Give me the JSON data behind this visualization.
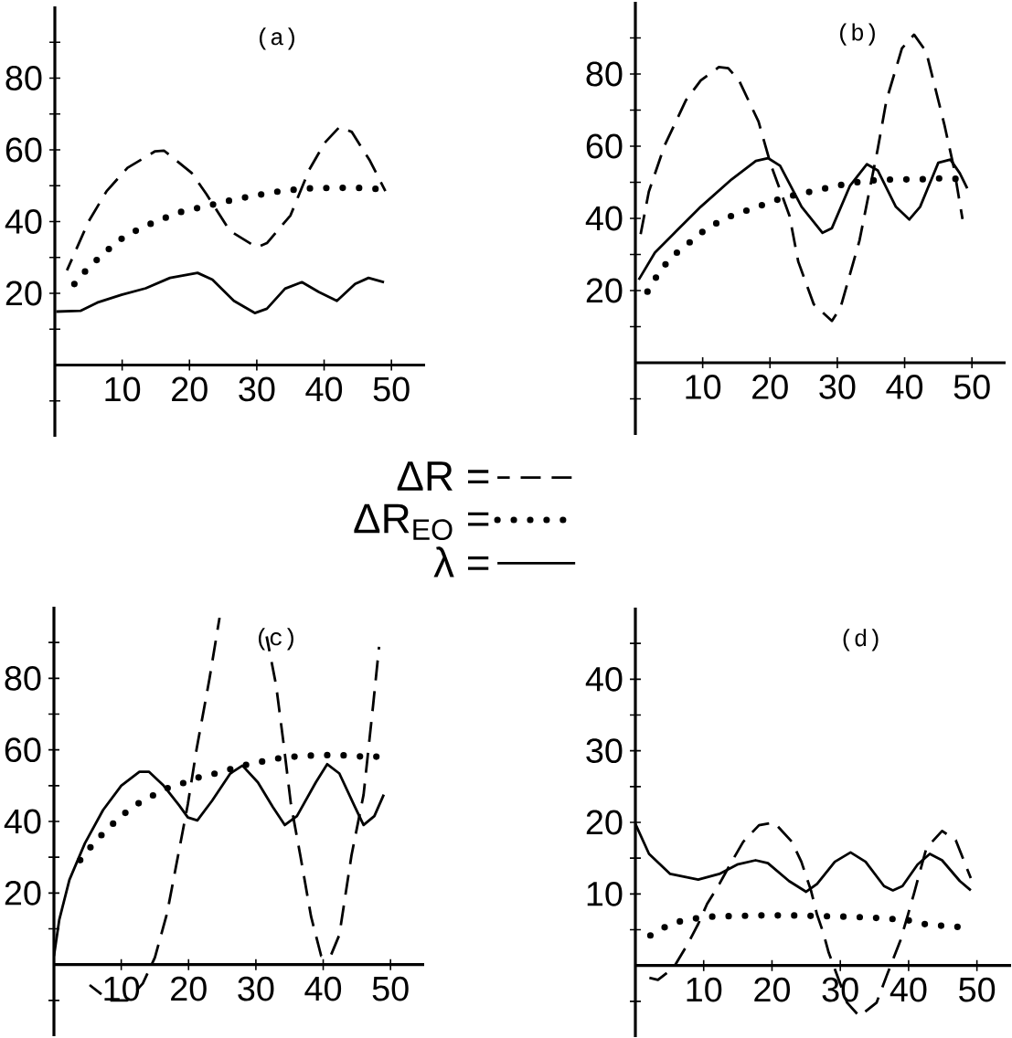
{
  "chart_data": [
    {
      "type": "line",
      "title": "(a)",
      "xlim": [
        0,
        55
      ],
      "ylim": [
        -20,
        100
      ],
      "xticks": [
        10,
        20,
        30,
        40,
        50
      ],
      "yticks": [
        {
          "value": -10,
          "label": null
        },
        {
          "value": 10,
          "label": null
        },
        20,
        {
          "value": 30,
          "label": null
        },
        40,
        {
          "value": 50,
          "label": null
        },
        60,
        {
          "value": 70,
          "label": null
        },
        80,
        {
          "value": 90,
          "label": null
        }
      ],
      "legend": "bottom right",
      "series": [
        {
          "name": "ΔR =",
          "color": "#000000",
          "line_style": "dashed",
          "x": [
            1.8,
            5,
            7.7,
            10.8,
            14.9,
            16.2,
            20.3,
            22.5,
            26,
            30,
            31.5,
            35,
            37.8,
            40.1,
            42.3,
            44.1,
            46.8,
            49.1
          ],
          "values": [
            26.4,
            40,
            48.5,
            55,
            59.6,
            59.8,
            53.6,
            47.7,
            37.4,
            32.8,
            34,
            41.7,
            54.5,
            62,
            66.4,
            65,
            57,
            48.5
          ]
        },
        {
          "name": "ΔR$_{EO}$ =",
          "color": "#000000",
          "line_style": "dotted",
          "x": [
            2.9,
            5,
            7,
            9,
            11,
            13.1,
            15.1,
            17.1,
            18.9,
            23,
            25,
            29,
            32.9,
            36.9,
            41,
            45,
            48.9
          ],
          "values": [
            22.6,
            27.2,
            30.6,
            34,
            36.6,
            38.3,
            40.2,
            41.5,
            42.8,
            44.5,
            45.5,
            47,
            48.3,
            49.2,
            49.4,
            49.4,
            49
          ]
        },
        {
          "name": "λ =",
          "color": "#000000",
          "line_style": "solid",
          "x": [
            0.2,
            3.8,
            6.3,
            9.9,
            13.5,
            17.1,
            21.2,
            23.4,
            26.6,
            29.7,
            31.5,
            34.2,
            36.7,
            39.2,
            41.9,
            44.6,
            46.6,
            48.9
          ],
          "values": [
            14.9,
            15.1,
            17.4,
            19.6,
            21.4,
            24.3,
            25.7,
            23.8,
            17.9,
            14.5,
            15.7,
            21.3,
            23.1,
            20.4,
            17.9,
            22.6,
            24.3,
            23.1
          ]
        }
      ]
    },
    {
      "type": "line",
      "title": "(b)",
      "xlim": [
        0,
        55
      ],
      "ylim": [
        -20,
        100
      ],
      "xticks": [
        10,
        20,
        30,
        40,
        50
      ],
      "yticks": [
        {
          "value": -10,
          "label": null
        },
        {
          "value": 10,
          "label": null
        },
        20,
        {
          "value": 30,
          "label": null
        },
        40,
        {
          "value": 50,
          "label": null
        },
        60,
        {
          "value": 70,
          "label": null
        },
        80,
        {
          "value": 90,
          "label": null
        }
      ],
      "series": [
        {
          "color": "#000000",
          "line_style": "dashed",
          "x": [
            0.7,
            2,
            4.3,
            7.5,
            9.7,
            12.4,
            13.8,
            15.4,
            18.3,
            20.1,
            22.9,
            24.2,
            26.5,
            29.2,
            30.5,
            33.3,
            36,
            37.3,
            39.6,
            41.4,
            43.2,
            45.9,
            47.3,
            48.6
          ],
          "values": [
            34.8,
            47.4,
            60,
            72.7,
            78.2,
            81.9,
            81.6,
            78.2,
            66.8,
            55,
            40.7,
            28,
            16.2,
            11.6,
            15.4,
            33.9,
            59.2,
            72.7,
            87.1,
            90.9,
            86.2,
            66,
            54.2,
            39.8
          ]
        },
        {
          "color": "#000000",
          "line_style": "dotted",
          "x": [
            1.8,
            3.8,
            5.9,
            7.9,
            10,
            12,
            14,
            18.1,
            21.9,
            26,
            30.1,
            34.2,
            38.2,
            42.3,
            46.4,
            48.4
          ],
          "values": [
            19.7,
            25.9,
            30.1,
            33.1,
            36.3,
            38.6,
            40.5,
            43.2,
            45.7,
            47.4,
            49.1,
            50.4,
            50.8,
            50.8,
            51.2,
            50.8
          ]
        },
        {
          "color": "#000000",
          "line_style": "solid",
          "x": [
            0.5,
            2.9,
            6.1,
            9.7,
            14.3,
            17.9,
            19.7,
            21.5,
            24.7,
            27.8,
            29.2,
            31.9,
            34.4,
            36,
            38.7,
            40.7,
            42.3,
            45,
            46.8,
            48.2,
            49.3
          ],
          "values": [
            23,
            30.5,
            36.5,
            43.2,
            50.8,
            55.9,
            56.7,
            54.6,
            43.2,
            36,
            37.3,
            49.1,
            55,
            53.3,
            43.2,
            39.7,
            43.2,
            55.4,
            56.3,
            52.5,
            48.3
          ]
        }
      ]
    },
    {
      "type": "line",
      "title": "(c)",
      "xlim": [
        0,
        55
      ],
      "ylim": [
        -20,
        100
      ],
      "xticks": [
        10,
        20,
        30,
        40,
        50
      ],
      "yticks": [
        {
          "value": -10,
          "label": null
        },
        {
          "value": 10,
          "label": null
        },
        20,
        {
          "value": 30,
          "label": null
        },
        40,
        {
          "value": 50,
          "label": null
        },
        60,
        {
          "value": 70,
          "label": null
        },
        80,
        {
          "value": 90,
          "label": null
        }
      ],
      "series": [
        {
          "color": "#000000",
          "line_style": "dashed",
          "x": [
            5.3,
            8.2,
            10.9,
            13.2,
            15,
            16.8,
            18.1,
            19.9,
            21.2,
            23.1,
            24.6,
            27,
            31.6,
            33,
            34.1,
            35.2,
            36.6,
            38.2,
            39.7,
            41.1,
            42.4,
            44.2,
            46,
            47.4,
            48.3
          ],
          "values": [
            -5.7,
            -10,
            -10,
            -5.3,
            2,
            14.3,
            27.1,
            44.9,
            60.3,
            79.8,
            96.9,
            null,
            91.7,
            78.1,
            62,
            44.9,
            30.5,
            13.4,
            2.4,
            2.4,
            8.3,
            30.5,
            47.5,
            72.2,
            88.8
          ]
        },
        {
          "color": "#000000",
          "line_style": "dotted",
          "x": [
            3.9,
            5.9,
            8,
            10,
            12,
            14.1,
            16.1,
            18,
            20,
            21.9,
            24,
            26,
            28,
            30,
            34.1,
            37.9,
            42,
            46,
            48.1
          ],
          "values": [
            29.2,
            33.9,
            38,
            41.5,
            44.5,
            46.6,
            48.8,
            50,
            51.2,
            52.6,
            53.4,
            54.5,
            55.6,
            56.4,
            57.9,
            58.4,
            58.6,
            58.1,
            58.1
          ]
        },
        {
          "color": "#000000",
          "line_style": "solid",
          "x": [
            0,
            0.8,
            2.3,
            4.6,
            7.3,
            10,
            12.7,
            14.1,
            16.3,
            18.6,
            19.9,
            21.3,
            23.5,
            26.2,
            28,
            30.3,
            32.5,
            34.3,
            36.1,
            38.9,
            40.6,
            42.4,
            44.7,
            46,
            47.6,
            49
          ],
          "values": [
            2.4,
            12.6,
            23.7,
            33.9,
            43.2,
            50,
            53.9,
            53.9,
            50,
            44.5,
            41.1,
            40.3,
            45.8,
            53.4,
            55.6,
            50.9,
            44.1,
            39,
            41.5,
            50.9,
            56,
            53.4,
            44.1,
            39,
            41.5,
            47.5
          ]
        }
      ]
    },
    {
      "type": "line",
      "title": "(d)",
      "xlim": [
        0,
        55
      ],
      "ylim": [
        -10,
        50
      ],
      "xticks": [
        10,
        20,
        30,
        40,
        50
      ],
      "yticks": [
        {
          "value": -5,
          "label": null
        },
        {
          "value": 5,
          "label": null
        },
        10,
        {
          "value": 15,
          "label": null
        },
        20,
        {
          "value": 25,
          "label": null
        },
        30,
        {
          "value": 35,
          "label": null
        },
        40,
        {
          "value": 45,
          "label": null
        }
      ],
      "series": [
        {
          "color": "#000000",
          "line_style": "dashed",
          "x": [
            0.7,
            3.3,
            5.6,
            7.6,
            9.2,
            10.5,
            12.3,
            14.1,
            15.8,
            18.1,
            20.3,
            22.9,
            24.3,
            25.7,
            26.6,
            27.5,
            28.3,
            29.7,
            31,
            32.8,
            35.3,
            36.8,
            38.8,
            39.9,
            40.8,
            42.6,
            44.9,
            46.9,
            48.4,
            49.1
          ],
          "values": [
            -1.4,
            -2,
            -0.3,
            2.9,
            5.8,
            8.6,
            11.4,
            14.5,
            17.3,
            19.6,
            20,
            17.3,
            14.5,
            10.5,
            7.1,
            4.6,
            1.8,
            -1.8,
            -5.2,
            -7.1,
            -5.2,
            -1.4,
            3.5,
            7.1,
            10.1,
            16.4,
            18.8,
            17.5,
            13.9,
            12.2
          ]
        },
        {
          "color": "#000000",
          "line_style": "dotted",
          "x": [
            2.2,
            4.2,
            6.2,
            8.3,
            10.3,
            14.1,
            18.5,
            23,
            27.5,
            31.9,
            36.4,
            40,
            42.2,
            44.4,
            46.7,
            48.4
          ],
          "values": [
            4.2,
            5.3,
            6.1,
            6.5,
            6.8,
            6.9,
            7,
            7,
            6.9,
            6.8,
            6.6,
            6.3,
            5.8,
            5.6,
            5.4,
            5.4
          ]
        },
        {
          "color": "#000000",
          "line_style": "solid",
          "x": [
            0,
            2,
            5.1,
            9.2,
            12.3,
            14.9,
            17.6,
            19.4,
            22.5,
            25,
            26.6,
            29.2,
            31.5,
            33.7,
            36.4,
            37.7,
            39.1,
            41.3,
            43.1,
            44.9,
            47.5,
            49.1
          ],
          "values": [
            19.8,
            15.6,
            12.8,
            12,
            12.8,
            14.1,
            14.7,
            14.3,
            11.8,
            10.3,
            11.4,
            14.5,
            15.8,
            14.5,
            11.1,
            10.5,
            11.1,
            14.1,
            15.6,
            14.7,
            11.8,
            10.5
          ]
        }
      ]
    }
  ]
}
